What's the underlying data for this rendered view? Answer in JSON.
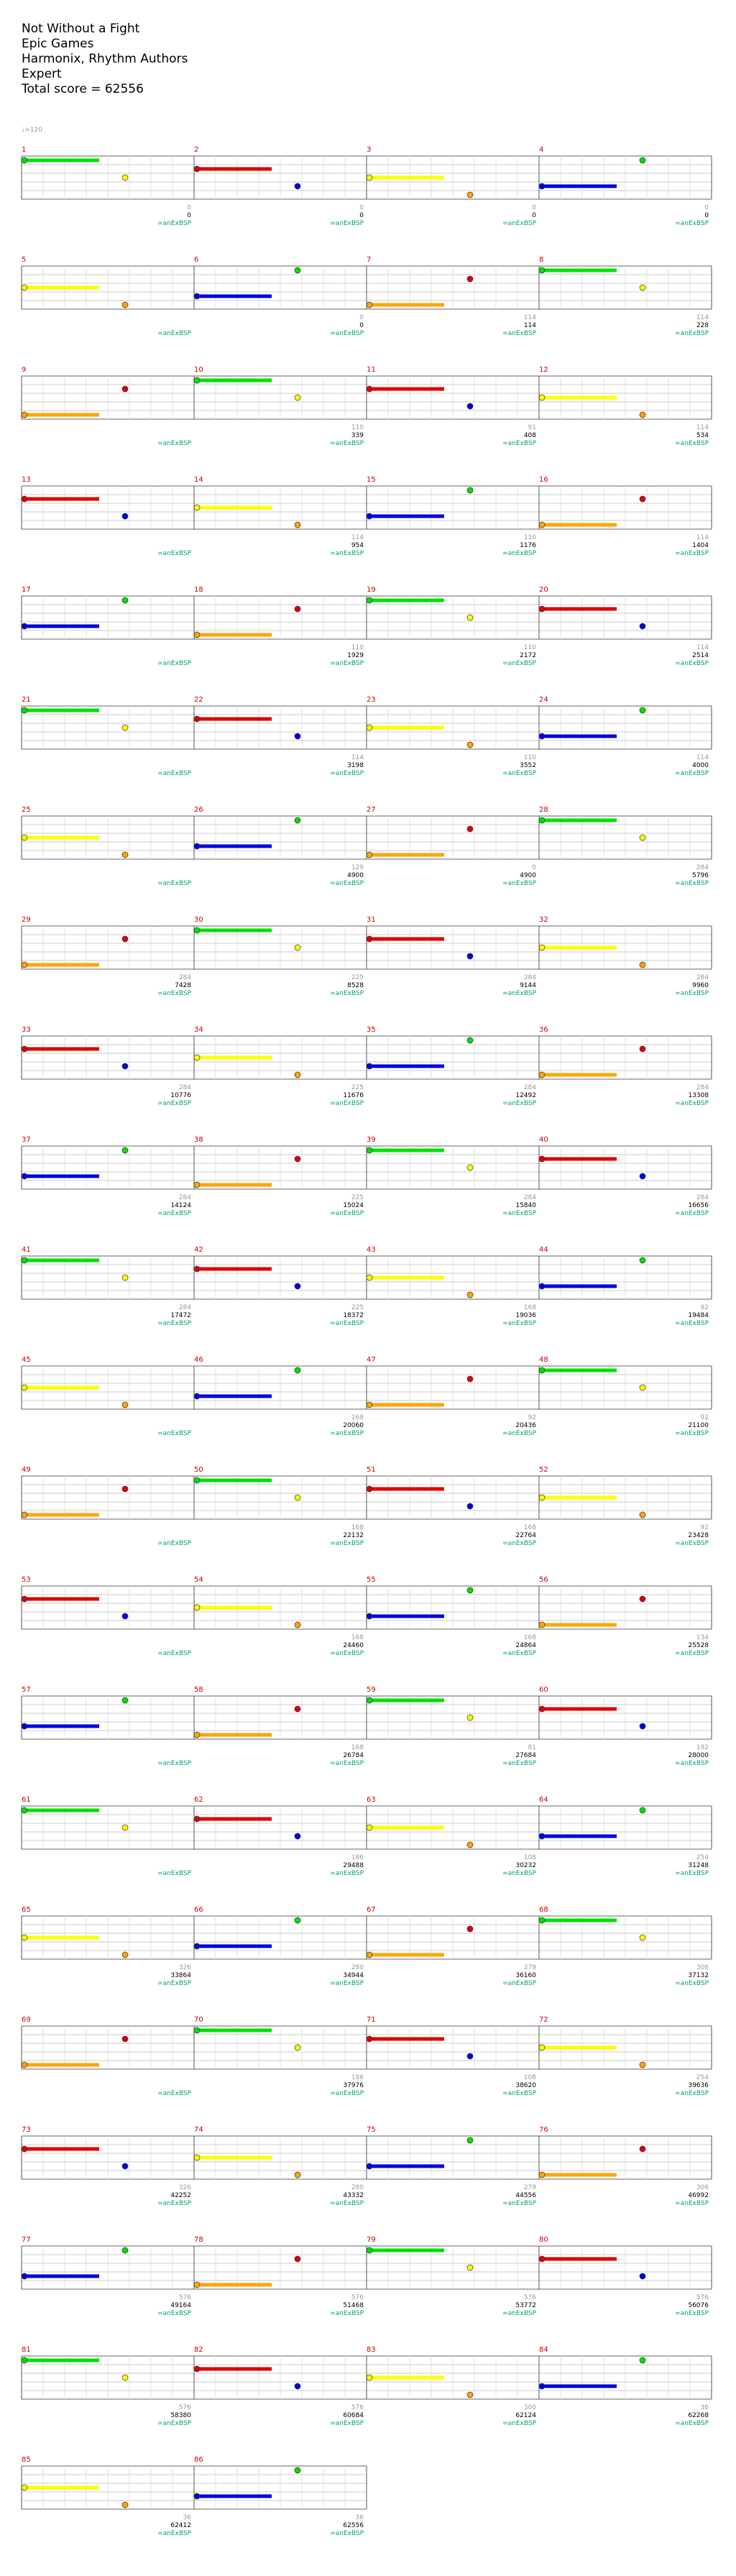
{
  "header": {
    "song": "Not Without a Fight",
    "artist": "Epic Games",
    "authors": "Harmonix, Rhythm Authors",
    "difficulty": "Expert",
    "total": "Total score = 62556"
  },
  "tempo": "♩=120",
  "overdrive_label": "=anExBSP",
  "lane_colors": [
    "#00e000",
    "#e00000",
    "#ffff00",
    "#0000e0",
    "#ffa500"
  ],
  "measures": [
    {
      "n": "1",
      "totals": [
        "0",
        "0",
        "0",
        "0"
      ],
      "scores": [
        "0",
        "0",
        "0",
        "0"
      ]
    },
    {
      "n": "2",
      "totals": [
        "0",
        "0",
        "0",
        "0"
      ],
      "scores": [
        "0",
        "0",
        "0",
        "0"
      ]
    },
    {
      "n": "3",
      "totals": [
        "0",
        "0",
        "0",
        "0"
      ],
      "scores": [
        "0",
        "0",
        "0",
        "0"
      ]
    },
    {
      "n": "4",
      "totals": [
        "0",
        "0",
        "0",
        "0"
      ],
      "scores": [
        "0",
        "0",
        "0",
        "0"
      ]
    },
    {
      "n": "5",
      "totals": [
        "",
        "",
        "",
        ""
      ],
      "scores": [
        "",
        "",
        "",
        ""
      ]
    },
    {
      "n": "6",
      "totals": [
        "0",
        "0",
        "",
        ""
      ],
      "scores": [
        "0",
        "0",
        "",
        ""
      ]
    },
    {
      "n": "7",
      "totals": [
        "114",
        "114",
        "",
        ""
      ],
      "scores": [
        "114",
        "114",
        "",
        ""
      ]
    },
    {
      "n": "8",
      "totals": [
        "114",
        "228",
        "",
        ""
      ],
      "scores": [
        "114",
        "228",
        "",
        ""
      ]
    },
    {
      "n": "9",
      "totals": [
        "",
        "",
        "",
        ""
      ],
      "scores": [
        "",
        "",
        "",
        ""
      ]
    },
    {
      "n": "10",
      "totals": [
        "110",
        "339",
        "",
        ""
      ],
      "scores": [
        "110",
        "339",
        "",
        ""
      ]
    },
    {
      "n": "11",
      "totals": [
        "91",
        "408",
        "",
        ""
      ],
      "scores": [
        "91",
        "408",
        "",
        ""
      ]
    },
    {
      "n": "12",
      "totals": [
        "114",
        "534",
        "",
        ""
      ],
      "scores": [
        "114",
        "534",
        "",
        ""
      ]
    },
    {
      "n": "13",
      "totals": [
        "",
        "",
        "",
        ""
      ],
      "scores": [
        "",
        "",
        "",
        ""
      ]
    },
    {
      "n": "14",
      "totals": [
        "114",
        "954",
        "",
        ""
      ],
      "scores": [
        "114",
        "954",
        "",
        ""
      ]
    },
    {
      "n": "15",
      "totals": [
        "110",
        "1176",
        "",
        ""
      ],
      "scores": [
        "110",
        "1176",
        "",
        ""
      ]
    },
    {
      "n": "16",
      "totals": [
        "114",
        "1404",
        "",
        ""
      ],
      "scores": [
        "114",
        "1404",
        "",
        ""
      ]
    },
    {
      "n": "17",
      "totals": [
        "",
        "",
        "",
        ""
      ],
      "scores": [
        "",
        "",
        "",
        ""
      ]
    },
    {
      "n": "18",
      "totals": [
        "110",
        "1929",
        "",
        ""
      ],
      "scores": [
        "110",
        "1929",
        "",
        ""
      ]
    },
    {
      "n": "19",
      "totals": [
        "110",
        "2172",
        "",
        ""
      ],
      "scores": [
        "110",
        "2172",
        "",
        ""
      ]
    },
    {
      "n": "20",
      "totals": [
        "114",
        "2514",
        "",
        ""
      ],
      "scores": [
        "114",
        "2514",
        "",
        ""
      ]
    },
    {
      "n": "21",
      "totals": [
        "",
        "",
        "",
        ""
      ],
      "scores": [
        "",
        "",
        "",
        ""
      ]
    },
    {
      "n": "22",
      "totals": [
        "114",
        "3198",
        "",
        ""
      ],
      "scores": [
        "114",
        "3198",
        "",
        ""
      ]
    },
    {
      "n": "23",
      "totals": [
        "110",
        "3552",
        "",
        ""
      ],
      "scores": [
        "110",
        "3552",
        "",
        ""
      ]
    },
    {
      "n": "24",
      "totals": [
        "114",
        "4000",
        "",
        ""
      ],
      "scores": [
        "114",
        "4000",
        "",
        ""
      ]
    }
  ],
  "rows": [
    {
      "measures": [
        "1",
        "2",
        "3",
        "4"
      ],
      "bottom": [
        "0",
        "0",
        "0",
        "0"
      ],
      "totals": [
        "0",
        "0",
        "0",
        "0"
      ],
      "od": true
    },
    {
      "measures": [
        "5",
        "6",
        "7",
        "8"
      ],
      "bottom": [
        "",
        "0",
        "114",
        "114"
      ],
      "totals": [
        "",
        "0",
        "114",
        "228"
      ],
      "od": true
    },
    {
      "measures": [
        "9",
        "10",
        "11",
        "12"
      ],
      "bottom": [
        "",
        "110",
        "91",
        "114"
      ],
      "totals": [
        "",
        "339",
        "408",
        "534"
      ],
      "od": true
    },
    {
      "measures": [
        "13",
        "14",
        "15",
        "16"
      ],
      "bottom": [
        "",
        "114",
        "110",
        "114"
      ],
      "totals": [
        "",
        "954",
        "1176",
        "1404"
      ],
      "od": true
    },
    {
      "measures": [
        "17",
        "18",
        "19",
        "20"
      ],
      "bottom": [
        "",
        "110",
        "110",
        "114"
      ],
      "totals": [
        "",
        "1929",
        "2172",
        "2514"
      ],
      "od": true
    },
    {
      "measures": [
        "21",
        "22",
        "23",
        "24"
      ],
      "bottom": [
        "",
        "114",
        "110",
        "114"
      ],
      "totals": [
        "",
        "3198",
        "3552",
        "4000"
      ],
      "od": true
    },
    {
      "measures": [
        "25",
        "26",
        "27",
        "28"
      ],
      "bottom": [
        "",
        "129",
        "0",
        "284"
      ],
      "totals": [
        "",
        "4900",
        "4900",
        "5796"
      ],
      "od": true
    },
    {
      "measures": [
        "29",
        "30",
        "31",
        "32"
      ],
      "bottom": [
        "284",
        "225",
        "284",
        "284"
      ],
      "totals": [
        "7428",
        "8528",
        "9144",
        "9960"
      ],
      "od": true
    },
    {
      "measures": [
        "33",
        "34",
        "35",
        "36"
      ],
      "bottom": [
        "284",
        "225",
        "284",
        "284"
      ],
      "totals": [
        "10776",
        "11676",
        "12492",
        "13308"
      ],
      "od": true
    },
    {
      "measures": [
        "37",
        "38",
        "39",
        "40"
      ],
      "bottom": [
        "284",
        "225",
        "284",
        "284"
      ],
      "totals": [
        "14124",
        "15024",
        "15840",
        "16656"
      ],
      "od": true
    },
    {
      "measures": [
        "41",
        "42",
        "43",
        "44"
      ],
      "bottom": [
        "284",
        "225",
        "168",
        "92"
      ],
      "totals": [
        "17472",
        "18372",
        "19036",
        "19484"
      ],
      "od": true
    },
    {
      "measures": [
        "45",
        "46",
        "47",
        "48"
      ],
      "bottom": [
        "",
        "168",
        "92",
        "92"
      ],
      "totals": [
        "",
        "20060",
        "20436",
        "21100"
      ],
      "od": true
    },
    {
      "measures": [
        "49",
        "50",
        "51",
        "52"
      ],
      "bottom": [
        "",
        "168",
        "168",
        "92"
      ],
      "totals": [
        "",
        "22132",
        "22764",
        "23428"
      ],
      "od": true
    },
    {
      "measures": [
        "53",
        "54",
        "55",
        "56"
      ],
      "bottom": [
        "",
        "168",
        "168",
        "134"
      ],
      "totals": [
        "",
        "24460",
        "24864",
        "25528"
      ],
      "od": true
    },
    {
      "measures": [
        "57",
        "58",
        "59",
        "60"
      ],
      "bottom": [
        "",
        "168",
        "81",
        "192"
      ],
      "totals": [
        "",
        "26784",
        "27684",
        "28000"
      ],
      "od": true
    },
    {
      "measures": [
        "61",
        "62",
        "63",
        "64"
      ],
      "bottom": [
        "",
        "186",
        "108",
        "254"
      ],
      "totals": [
        "",
        "29488",
        "30232",
        "31248"
      ],
      "od": true
    },
    {
      "measures": [
        "65",
        "66",
        "67",
        "68"
      ],
      "bottom": [
        "326",
        "280",
        "279",
        "306"
      ],
      "totals": [
        "33864",
        "34944",
        "36160",
        "37132"
      ],
      "od": true
    },
    {
      "measures": [
        "69",
        "70",
        "71",
        "72"
      ],
      "bottom": [
        "",
        "186",
        "108",
        "254"
      ],
      "totals": [
        "",
        "37976",
        "38620",
        "39636"
      ],
      "od": true
    },
    {
      "measures": [
        "73",
        "74",
        "75",
        "76"
      ],
      "bottom": [
        "326",
        "280",
        "279",
        "306"
      ],
      "totals": [
        "42252",
        "43332",
        "44556",
        "46992"
      ],
      "od": true
    },
    {
      "measures": [
        "77",
        "78",
        "79",
        "80"
      ],
      "bottom": [
        "576",
        "576",
        "576",
        "576"
      ],
      "totals": [
        "49164",
        "51468",
        "53772",
        "56076"
      ],
      "od": true
    },
    {
      "measures": [
        "81",
        "82",
        "83",
        "84"
      ],
      "bottom": [
        "576",
        "576",
        "300",
        "36"
      ],
      "totals": [
        "58380",
        "60684",
        "62124",
        "62268"
      ],
      "od": true
    },
    {
      "measures": [
        "85",
        "86"
      ],
      "bottom": [
        "36",
        "36"
      ],
      "totals": [
        "62412",
        "62556"
      ],
      "od": true
    }
  ]
}
